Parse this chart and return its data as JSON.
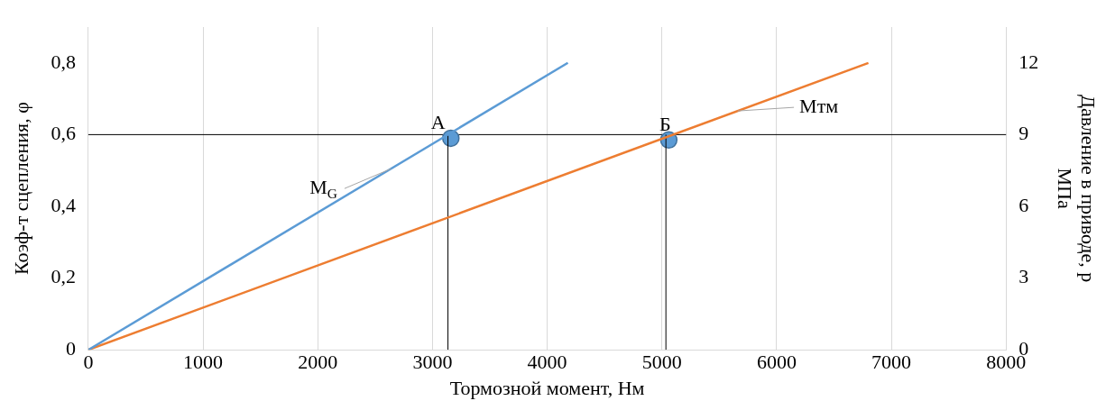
{
  "chart_data": {
    "type": "line",
    "xlabel": "Тормозной момент, Нм",
    "ylabel": "Коэф-т сцепления, φ",
    "y2label": "Давление в приводе, p\nМПа",
    "xlim": [
      0,
      8000
    ],
    "xticks": [
      0,
      1000,
      2000,
      3000,
      4000,
      5000,
      6000,
      7000,
      8000
    ],
    "ylim": [
      0,
      0.9
    ],
    "yticks": [
      0,
      {
        "value": 0.2,
        "label": "0,2"
      },
      {
        "value": 0.4,
        "label": "0,4"
      },
      {
        "value": 0.6,
        "label": "0,6"
      },
      {
        "value": 0.8,
        "label": "0,8"
      }
    ],
    "y2lim": [
      0,
      13.5
    ],
    "y2ticks": [
      0,
      3,
      6,
      9,
      12
    ],
    "grid": "x",
    "legend": false,
    "series": [
      {
        "type": "line",
        "color": "#5b9bd5",
        "x": [
          0,
          4180
        ],
        "values": [
          0,
          0.8
        ]
      },
      {
        "type": "line",
        "color": "#ed7d31",
        "x": [
          0,
          6800
        ],
        "values": [
          0,
          0.8
        ]
      },
      {
        "type": "line",
        "color": "#000000",
        "x": [
          3135,
          3135
        ],
        "values": [
          0,
          0.6
        ]
      },
      {
        "type": "line",
        "color": "#000000",
        "x": [
          5035,
          5035
        ],
        "values": [
          0,
          0.6
        ]
      },
      {
        "type": "scatter",
        "marker": "circle",
        "color": "#5b9bd5",
        "x": [
          3160,
          5060
        ],
        "values": [
          0.59,
          0.585
        ]
      }
    ],
    "ref_lines": [
      {
        "axis": "y",
        "value": 0.6,
        "color": "#000000"
      }
    ],
    "annotations": [
      {
        "text": "А",
        "x": 3160,
        "y": 0.59
      },
      {
        "text": "Б",
        "x": 5060,
        "y": 0.585
      },
      {
        "text": "M$_{G}$",
        "x": 2640,
        "y": 0.505
      },
      {
        "text": "Мтм",
        "x": 5660,
        "y": 0.666
      }
    ]
  }
}
